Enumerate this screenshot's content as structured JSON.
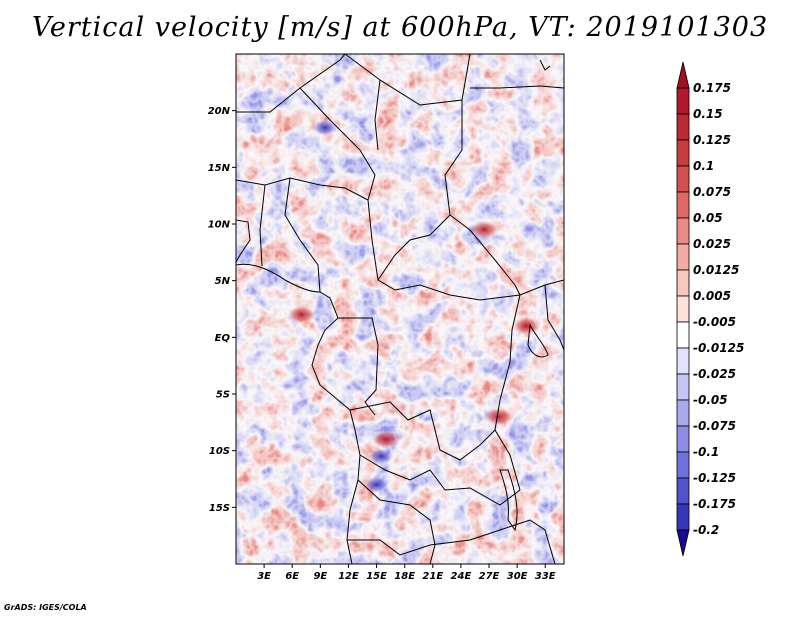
{
  "title": "Vertical velocity [m/s] at 600hPa, VT: 2019101303",
  "credit": "GrADS: IGES/COLA",
  "map": {
    "lon_range": [
      0,
      35
    ],
    "lat_range": [
      -20,
      25
    ],
    "lat_ticks": [
      {
        "value": 20,
        "label": "20N"
      },
      {
        "value": 15,
        "label": "15N"
      },
      {
        "value": 10,
        "label": "10N"
      },
      {
        "value": 5,
        "label": "5N"
      },
      {
        "value": 0,
        "label": "EQ"
      },
      {
        "value": -5,
        "label": "5S"
      },
      {
        "value": -10,
        "label": "10S"
      },
      {
        "value": -15,
        "label": "15S"
      }
    ],
    "lon_ticks": [
      {
        "value": 3,
        "label": "3E"
      },
      {
        "value": 6,
        "label": "6E"
      },
      {
        "value": 9,
        "label": "9E"
      },
      {
        "value": 12,
        "label": "12E"
      },
      {
        "value": 15,
        "label": "15E"
      },
      {
        "value": 18,
        "label": "18E"
      },
      {
        "value": 21,
        "label": "21E"
      },
      {
        "value": 24,
        "label": "24E"
      },
      {
        "value": 27,
        "label": "27E"
      },
      {
        "value": 30,
        "label": "30E"
      },
      {
        "value": 33,
        "label": "33E"
      }
    ],
    "strong_updraft_areas": [
      {
        "lon": 16,
        "lat": -9
      },
      {
        "lon": 28,
        "lat": -7
      },
      {
        "lon": 7,
        "lat": 2
      },
      {
        "lon": 26.5,
        "lat": 9.5
      },
      {
        "lon": 31,
        "lat": 1
      }
    ],
    "strong_downdraft_areas": [
      {
        "lon": 15.5,
        "lat": -10.5
      },
      {
        "lon": 15,
        "lat": -13
      },
      {
        "lon": 9.5,
        "lat": 18.5
      }
    ]
  },
  "colorbar": {
    "levels": [
      {
        "label": "0.175",
        "color": "#b2182b"
      },
      {
        "label": "0.15",
        "color": "#bb2a32"
      },
      {
        "label": "0.125",
        "color": "#c83c3c"
      },
      {
        "label": "0.1",
        "color": "#d45050"
      },
      {
        "label": "0.075",
        "color": "#df6a66"
      },
      {
        "label": "0.05",
        "color": "#ea8a84"
      },
      {
        "label": "0.025",
        "color": "#f2aaa2"
      },
      {
        "label": "0.0125",
        "color": "#f8c8c0"
      },
      {
        "label": "0.005",
        "color": "#fde2dc"
      },
      {
        "label": "-0.005",
        "color": "#ffffff"
      },
      {
        "label": "-0.0125",
        "color": "#e2e2fb"
      },
      {
        "label": "-0.025",
        "color": "#c6c6f5"
      },
      {
        "label": "-0.05",
        "color": "#a9a9ee"
      },
      {
        "label": "-0.075",
        "color": "#8d8de6"
      },
      {
        "label": "-0.1",
        "color": "#7171dc"
      },
      {
        "label": "-0.125",
        "color": "#5252cc"
      },
      {
        "label": "-0.175",
        "color": "#3636b8"
      },
      {
        "label": "-0.2",
        "color": "#1e1ea0"
      }
    ],
    "overflow_colors": {
      "top": "#a01020",
      "bottom": "#180c8c"
    }
  }
}
